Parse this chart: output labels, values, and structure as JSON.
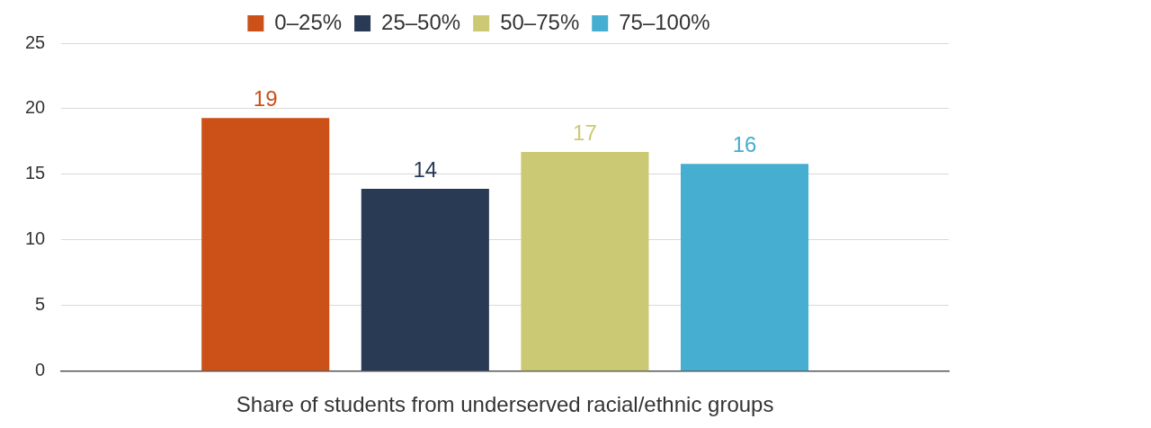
{
  "chart_data": {
    "type": "bar",
    "xlabel": "Share of students from underserved racial/ethnic groups",
    "categories": [
      null
    ],
    "series": [
      {
        "name": "0–25%",
        "color": "#cc5119",
        "values": [
          19.3
        ],
        "value_labels": [
          "19"
        ]
      },
      {
        "name": "25–50%",
        "color": "#283a54",
        "values": [
          13.9
        ],
        "value_labels": [
          "14"
        ]
      },
      {
        "name": "50–75%",
        "color": "#ccc975",
        "values": [
          16.7
        ],
        "value_labels": [
          "17"
        ]
      },
      {
        "name": "75–100%",
        "color": "#45aed1",
        "values": [
          15.8
        ],
        "value_labels": [
          "16"
        ]
      }
    ],
    "ylim": [
      0,
      25
    ],
    "yticks": [
      0,
      5,
      10,
      15,
      20,
      25
    ],
    "grid": "y",
    "legend": "top"
  }
}
